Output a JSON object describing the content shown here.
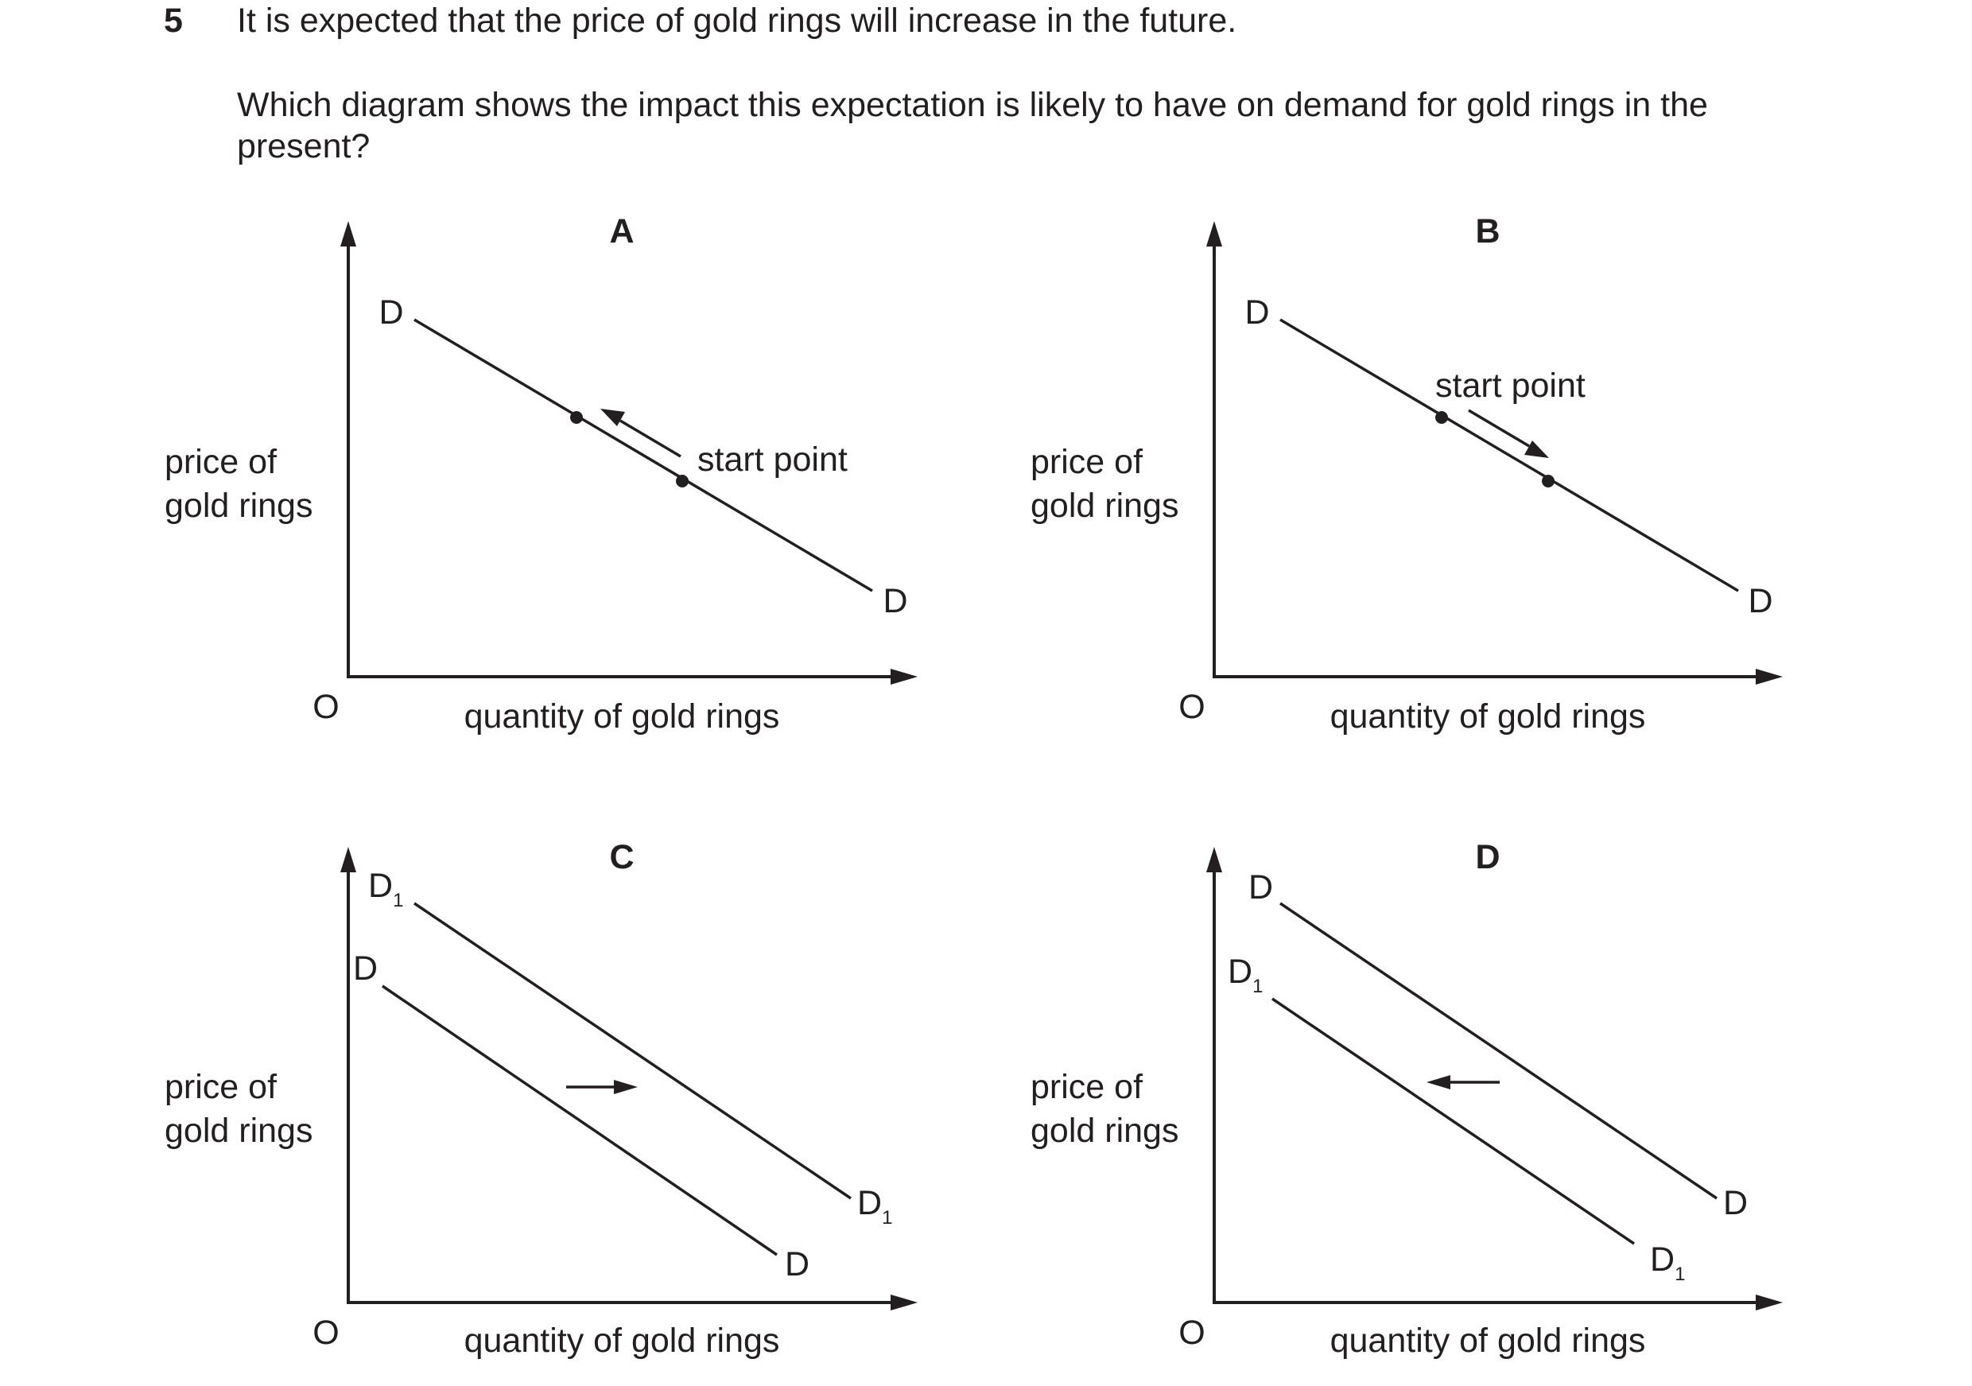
{
  "question": {
    "number": "5",
    "intro": "It is expected that the price of gold rings will increase in the future.",
    "stem_line1": "Which diagram shows the impact this expectation is likely to have on demand for gold rings in the",
    "stem_line2": "present?"
  },
  "axes": {
    "y_label_line1": "price of",
    "y_label_line2": "gold rings",
    "x_label": "quantity of gold rings",
    "origin": "O"
  },
  "panels": {
    "A": {
      "letter": "A",
      "curve_label_top": "D",
      "curve_label_bottom": "D",
      "annotation": "start point",
      "movement": "up along curve"
    },
    "B": {
      "letter": "B",
      "curve_label_top": "D",
      "curve_label_bottom": "D",
      "annotation": "start point",
      "movement": "down along curve"
    },
    "C": {
      "letter": "C",
      "outer_label": "D",
      "outer_sub": "1",
      "inner_label": "D",
      "outer_end_label": "D",
      "outer_end_sub": "1",
      "inner_end_label": "D",
      "shift": "right"
    },
    "D": {
      "letter": "D",
      "outer_label": "D",
      "inner_label": "D",
      "inner_sub": "1",
      "outer_end_label": "D",
      "inner_end_label": "D",
      "inner_end_sub": "1",
      "shift": "left"
    }
  }
}
